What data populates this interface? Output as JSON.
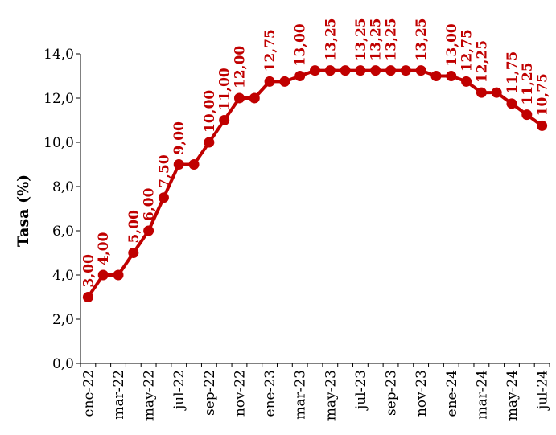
{
  "chart_data": {
    "type": "line",
    "title": "",
    "xlabel": "",
    "ylabel": "Tasa (%)",
    "ylim": [
      0,
      14
    ],
    "yticks": [
      "0,0",
      "2,0",
      "4,0",
      "6,0",
      "8,0",
      "10,0",
      "12,0",
      "14,0"
    ],
    "grid": false,
    "legend": "none",
    "color": "#c00000",
    "x": [
      "ene-22",
      "feb-22",
      "mar-22",
      "abr-22",
      "may-22",
      "jun-22",
      "jul-22",
      "ago-22",
      "sep-22",
      "oct-22",
      "nov-22",
      "dic-22",
      "ene-23",
      "feb-23",
      "mar-23",
      "abr-23",
      "may-23",
      "jun-23",
      "jul-23",
      "ago-23",
      "sep-23",
      "oct-23",
      "nov-23",
      "dic-23",
      "ene-24",
      "feb-24",
      "mar-24",
      "abr-24",
      "may-24",
      "jun-24",
      "jul-24"
    ],
    "xtick_labels": [
      "ene-22",
      "mar-22",
      "may-22",
      "jul-22",
      "sep-22",
      "nov-22",
      "ene-23",
      "mar-23",
      "may-23",
      "jul-23",
      "sep-23",
      "nov-23",
      "ene-24",
      "mar-24",
      "may-24",
      "jul-24"
    ],
    "series": [
      {
        "values": [
          3.0,
          4.0,
          4.0,
          5.0,
          6.0,
          7.5,
          9.0,
          9.0,
          10.0,
          11.0,
          12.0,
          12.0,
          12.75,
          12.75,
          13.0,
          13.25,
          13.25,
          13.25,
          13.25,
          13.25,
          13.25,
          13.25,
          13.25,
          13.0,
          13.0,
          12.75,
          12.25,
          12.25,
          11.75,
          11.25,
          10.75
        ],
        "labels": [
          "3,00",
          "4,00",
          "",
          "5,00",
          "6,00",
          "7,50",
          "9,00",
          "",
          "10,00",
          "11,00",
          "12,00",
          "",
          "12,75",
          "",
          "13,00",
          "",
          "13,25",
          "",
          "13,25",
          "13,25",
          "13,25",
          "",
          "13,25",
          "",
          "13,00",
          "12,75",
          "12,25",
          "",
          "11,75",
          "11,25",
          "10,75"
        ]
      }
    ]
  }
}
